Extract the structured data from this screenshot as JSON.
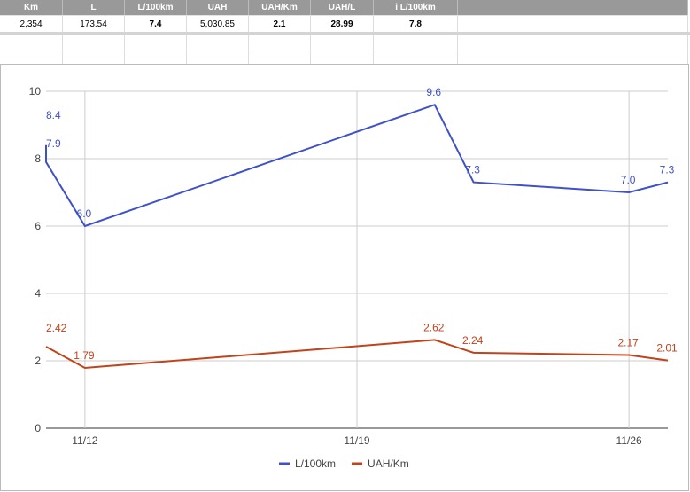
{
  "table": {
    "header": [
      "Km",
      "L",
      "L/100km",
      "UAH",
      "UAH/Km",
      "UAH/L",
      "i L/100km"
    ],
    "rows": [
      [
        "2,354",
        "173.54",
        "7.4",
        "5,030.85",
        "2.1",
        "28.99",
        "7.8"
      ]
    ]
  },
  "chart_data": {
    "type": "line",
    "x": [
      "11/11",
      "11/11",
      "11/12",
      "11/21",
      "11/22",
      "11/26",
      "11/27"
    ],
    "xlim": [
      "11/11",
      "11/27"
    ],
    "xticks": [
      "11/12",
      "11/19",
      "11/26"
    ],
    "ylim": [
      0,
      10
    ],
    "yticks": [
      0,
      2,
      4,
      6,
      8,
      10
    ],
    "grid": true,
    "legend": "bottom",
    "series": [
      {
        "name": "L/100km",
        "color": "#3f51c9",
        "values": [
          8.4,
          7.9,
          6.0,
          9.6,
          7.3,
          7.0,
          7.3
        ],
        "value_labels": [
          "8.4",
          "7.9",
          "6.0",
          "9.6",
          "7.3",
          "7.0",
          "7.3"
        ]
      },
      {
        "name": "UAH/Km",
        "color": "#c0431b",
        "values": [
          null,
          2.42,
          1.79,
          2.62,
          2.24,
          2.17,
          2.01
        ]
      }
    ]
  }
}
